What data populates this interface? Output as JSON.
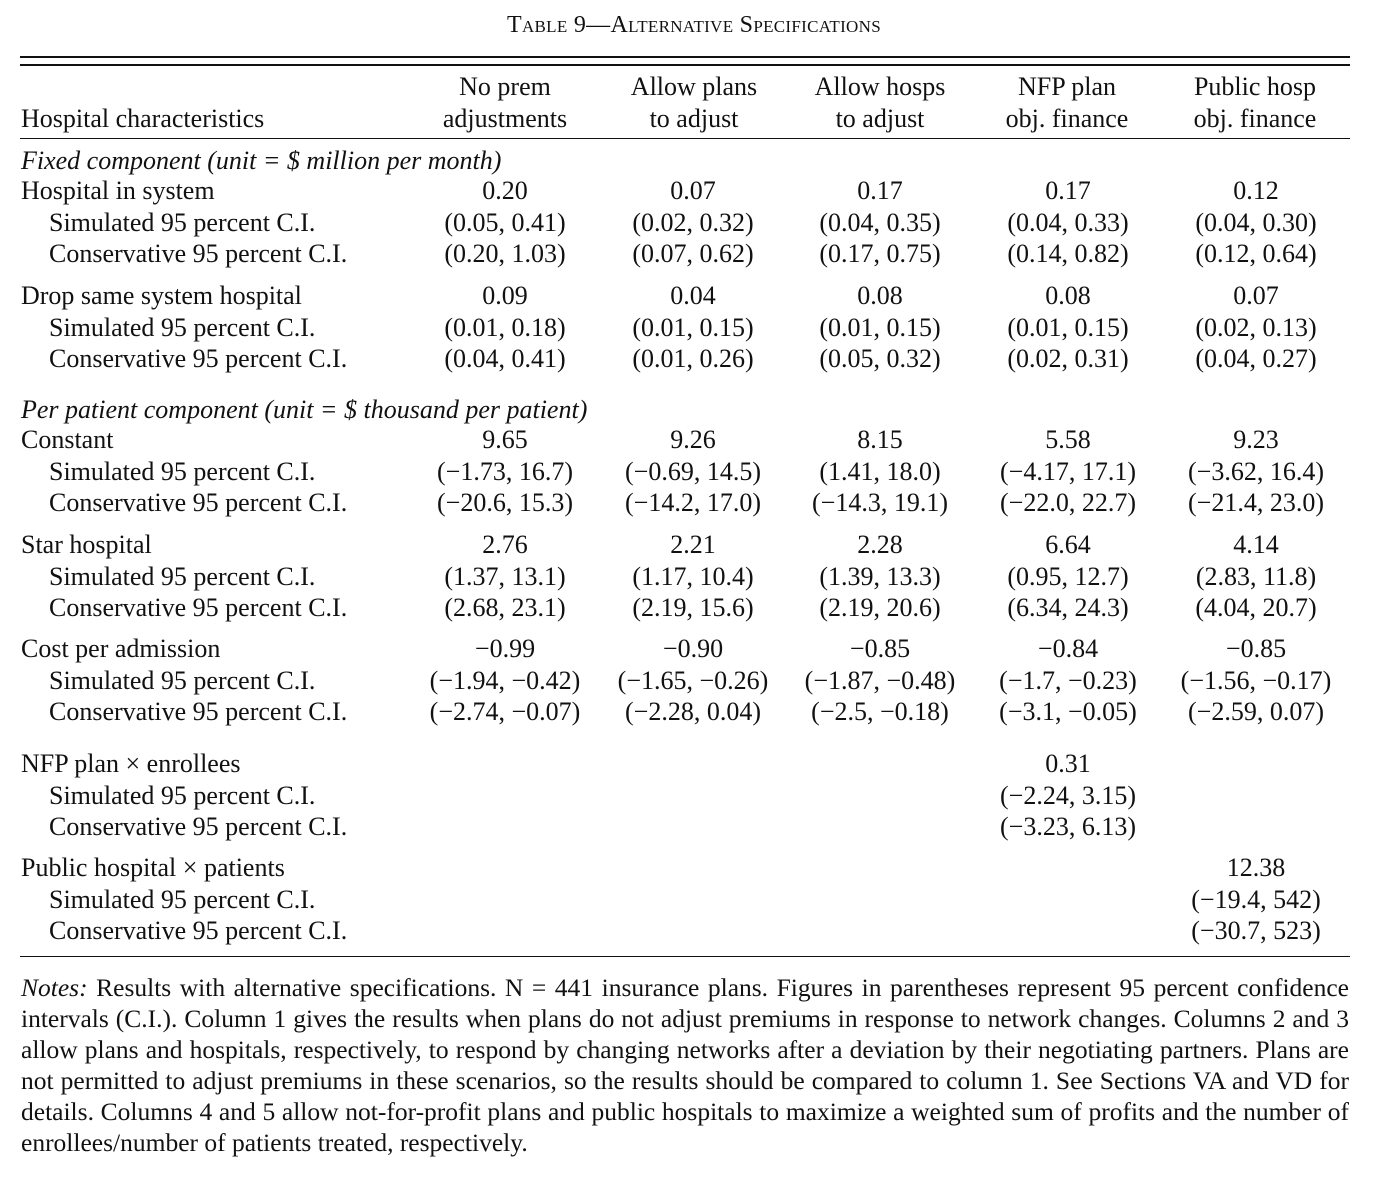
{
  "table": {
    "title": "Table 9—Alternative Specifications",
    "header": {
      "row_label": "Hospital characteristics",
      "columns": [
        {
          "line1": "No prem",
          "line2": "adjustments"
        },
        {
          "line1": "Allow plans",
          "line2": "to adjust"
        },
        {
          "line1": "Allow hosps",
          "line2": "to adjust"
        },
        {
          "line1": "NFP plan",
          "line2": "obj. finance"
        },
        {
          "line1": "Public hosp",
          "line2": "obj. finance"
        }
      ]
    },
    "sections": [
      {
        "title": "Fixed component (unit = $ million per month)",
        "groups": [
          {
            "label": "Hospital in system",
            "sim_label": "Simulated 95 percent C.I.",
            "cons_label": "Conservative 95 percent C.I.",
            "values": [
              "0.20",
              "0.07",
              "0.17",
              "0.17",
              "0.12"
            ],
            "simulated": [
              "(0.05, 0.41)",
              "(0.02, 0.32)",
              "(0.04, 0.35)",
              "(0.04, 0.33)",
              "(0.04, 0.30)"
            ],
            "conservative": [
              "(0.20, 1.03)",
              "(0.07, 0.62)",
              "(0.17, 0.75)",
              "(0.14, 0.82)",
              "(0.12, 0.64)"
            ]
          },
          {
            "label": "Drop same system hospital",
            "sim_label": "Simulated 95 percent C.I.",
            "cons_label": "Conservative 95 percent C.I.",
            "values": [
              "0.09",
              "0.04",
              "0.08",
              "0.08",
              "0.07"
            ],
            "simulated": [
              "(0.01, 0.18)",
              "(0.01, 0.15)",
              "(0.01, 0.15)",
              "(0.01, 0.15)",
              "(0.02, 0.13)"
            ],
            "conservative": [
              "(0.04, 0.41)",
              "(0.01, 0.26)",
              "(0.05, 0.32)",
              "(0.02, 0.31)",
              "(0.04, 0.27)"
            ]
          }
        ]
      },
      {
        "title": "Per patient component (unit = $ thousand per patient)",
        "groups": [
          {
            "label": "Constant",
            "sim_label": "Simulated 95 percent C.I.",
            "cons_label": "Conservative 95 percent C.I.",
            "values": [
              "9.65",
              "9.26",
              "8.15",
              "5.58",
              "9.23"
            ],
            "simulated": [
              "(−1.73, 16.7)",
              "(−0.69, 14.5)",
              "(1.41, 18.0)",
              "(−4.17, 17.1)",
              "(−3.62, 16.4)"
            ],
            "conservative": [
              "(−20.6, 15.3)",
              "(−14.2, 17.0)",
              "(−14.3, 19.1)",
              "(−22.0, 22.7)",
              "(−21.4, 23.0)"
            ]
          },
          {
            "label": "Star hospital",
            "sim_label": "Simulated 95 percent C.I.",
            "cons_label": "Conservative 95 percent C.I.",
            "values": [
              "2.76",
              "2.21",
              "2.28",
              "6.64",
              "4.14"
            ],
            "simulated": [
              "(1.37, 13.1)",
              "(1.17, 10.4)",
              "(1.39, 13.3)",
              "(0.95, 12.7)",
              "(2.83, 11.8)"
            ],
            "conservative": [
              "(2.68, 23.1)",
              "(2.19, 15.6)",
              "(2.19, 20.6)",
              "(6.34, 24.3)",
              "(4.04, 20.7)"
            ]
          },
          {
            "label": "Cost per admission",
            "sim_label": "Simulated 95 percent C.I.",
            "cons_label": "Conservative 95 percent C.I.",
            "values": [
              "−0.99",
              "−0.90",
              "−0.85",
              "−0.84",
              "−0.85"
            ],
            "simulated": [
              "(−1.94, −0.42)",
              "(−1.65, −0.26)",
              "(−1.87, −0.48)",
              "(−1.7, −0.23)",
              "(−1.56, −0.17)"
            ],
            "conservative": [
              "(−2.74, −0.07)",
              "(−2.28, 0.04)",
              "(−2.5, −0.18)",
              "(−3.1, −0.05)",
              "(−2.59, 0.07)"
            ]
          },
          {
            "label": "NFP plan × enrollees",
            "sim_label": "Simulated 95 percent C.I.",
            "cons_label": "Conservative 95 percent C.I.",
            "values": [
              "",
              "",
              "",
              "0.31",
              ""
            ],
            "simulated": [
              "",
              "",
              "",
              "(−2.24, 3.15)",
              ""
            ],
            "conservative": [
              "",
              "",
              "",
              "(−3.23, 6.13)",
              ""
            ]
          },
          {
            "label": "Public hospital × patients",
            "sim_label": "Simulated 95 percent C.I.",
            "cons_label": "Conservative 95 percent C.I.",
            "values": [
              "",
              "",
              "",
              "",
              "12.38"
            ],
            "simulated": [
              "",
              "",
              "",
              "",
              "(−19.4, 542)"
            ],
            "conservative": [
              "",
              "",
              "",
              "",
              "(−30.7, 523)"
            ]
          }
        ]
      }
    ]
  },
  "notes": {
    "lead": "Notes:",
    "text": "Results with alternative specifications. N = 441 insurance plans. Figures in parentheses represent 95 percent confidence intervals (C.I.). Column 1 gives the results when plans do not adjust premiums in response to network changes. Columns 2 and 3 allow plans and hospitals, respectively, to respond by changing networks after a deviation by their negotiating partners. Plans are not permitted to adjust premiums in these scenarios, so the results should be compared to column 1. See Sections VA and VD for details. Columns 4 and 5 allow not-for-profit plans and public hospitals to maximize a weighted sum of profits and the number of enrollees/number of patients treated, respectively."
  }
}
